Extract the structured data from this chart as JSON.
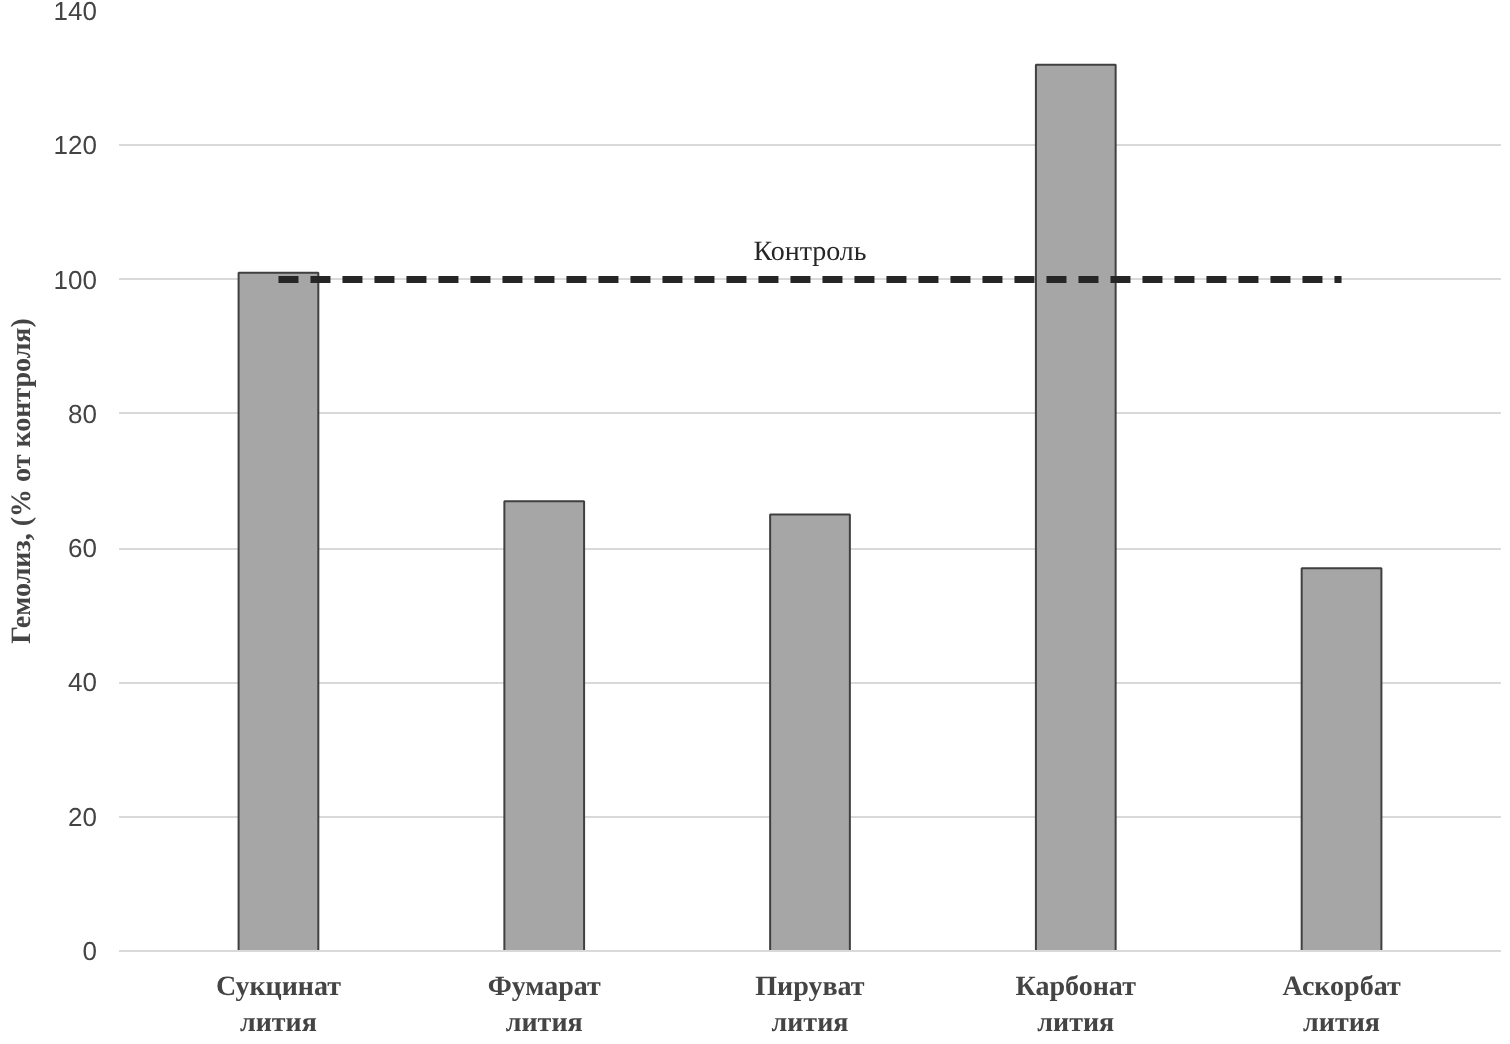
{
  "chart_data": {
    "type": "bar",
    "ylabel": "Гемолиз, (% от контроля)",
    "categories": [
      "Сукцинат\nлития",
      "Фумарат\nлития",
      "Пируват\nлития",
      "Карбонат\nлития",
      "Аскорбат\nлития"
    ],
    "values": [
      101,
      67,
      65,
      132,
      57
    ],
    "color": "#a6a6a6",
    "ylim": [
      0,
      140
    ],
    "yticks": [
      0,
      20,
      40,
      60,
      80,
      100,
      120,
      140
    ],
    "grid": "y",
    "ref_lines": [
      {
        "axis": "y",
        "value": 100,
        "label": "Контроль",
        "color": "#262626",
        "line_style": "dashed"
      }
    ]
  }
}
